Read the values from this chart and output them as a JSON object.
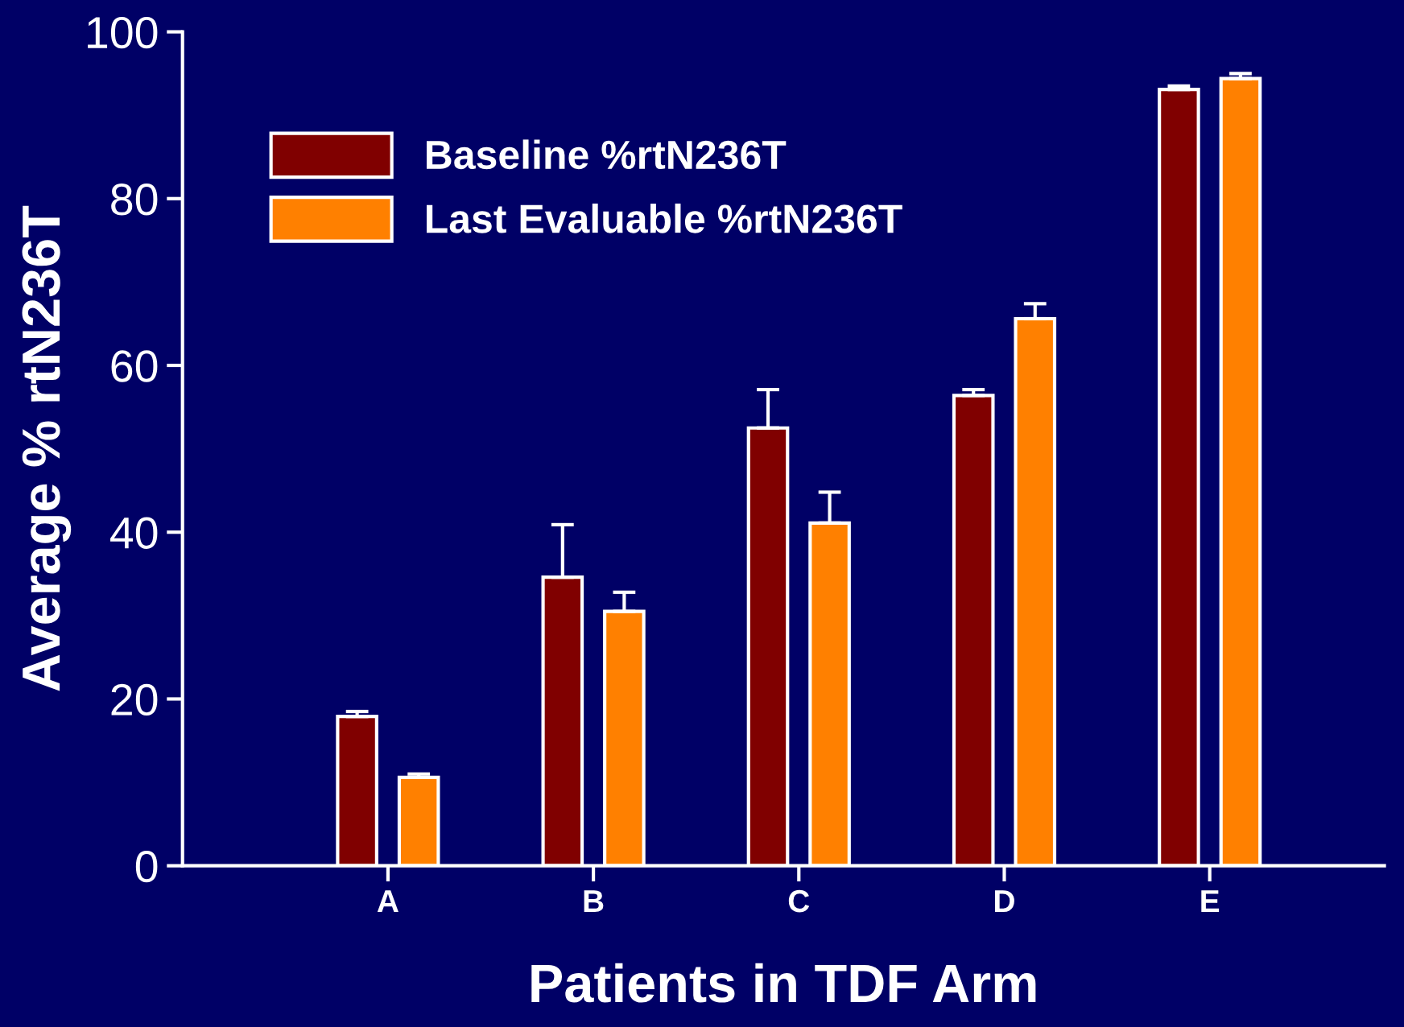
{
  "chart_data": {
    "type": "bar",
    "xlabel": "Patients in TDF Arm",
    "ylabel": "Average % rtN236T",
    "categories": [
      "A",
      "B",
      "C",
      "D",
      "E"
    ],
    "series": [
      {
        "name": "Baseline %rtN236T",
        "color": "#800000",
        "values": [
          17.9,
          34.6,
          52.5,
          56.4,
          93.1
        ],
        "errors": [
          [
            17.9,
            18.5
          ],
          [
            34.6,
            40.9
          ],
          [
            52.5,
            57.1
          ],
          [
            56.4,
            57.1
          ],
          [
            93.1,
            93.5
          ]
        ]
      },
      {
        "name": "Last Evaluable %rtN236T",
        "color": "#ff8000",
        "values": [
          10.6,
          30.5,
          41.1,
          65.6,
          94.4
        ],
        "errors": [
          [
            10.6,
            11.0
          ],
          [
            30.5,
            32.8
          ],
          [
            41.1,
            44.8
          ],
          [
            65.6,
            67.4
          ],
          [
            94.4,
            95.0
          ]
        ]
      }
    ],
    "ylim": [
      0,
      100
    ],
    "yticks": [
      0,
      20,
      40,
      60,
      80,
      100
    ],
    "grid": false,
    "legend": "top left"
  }
}
